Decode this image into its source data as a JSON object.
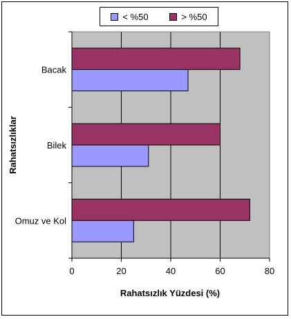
{
  "chart_data": {
    "type": "bar",
    "orientation": "horizontal",
    "categories": [
      "Omuz ve Kol",
      "Bilek",
      "Bacak"
    ],
    "series": [
      {
        "name": "< %50",
        "values": [
          25,
          31,
          47
        ],
        "color": "#9999FF"
      },
      {
        "name": "> %50",
        "values": [
          72,
          60,
          68
        ],
        "color": "#993366"
      }
    ],
    "xlabel": "Rahatsızlık Yüzdesi (%)",
    "ylabel": "Rahatsızlıklar",
    "xlim": [
      0,
      80
    ],
    "xticks": [
      0,
      20,
      40,
      60,
      80
    ],
    "grid": true,
    "plot_background": "#C0C0C0",
    "legend_position": "top"
  }
}
